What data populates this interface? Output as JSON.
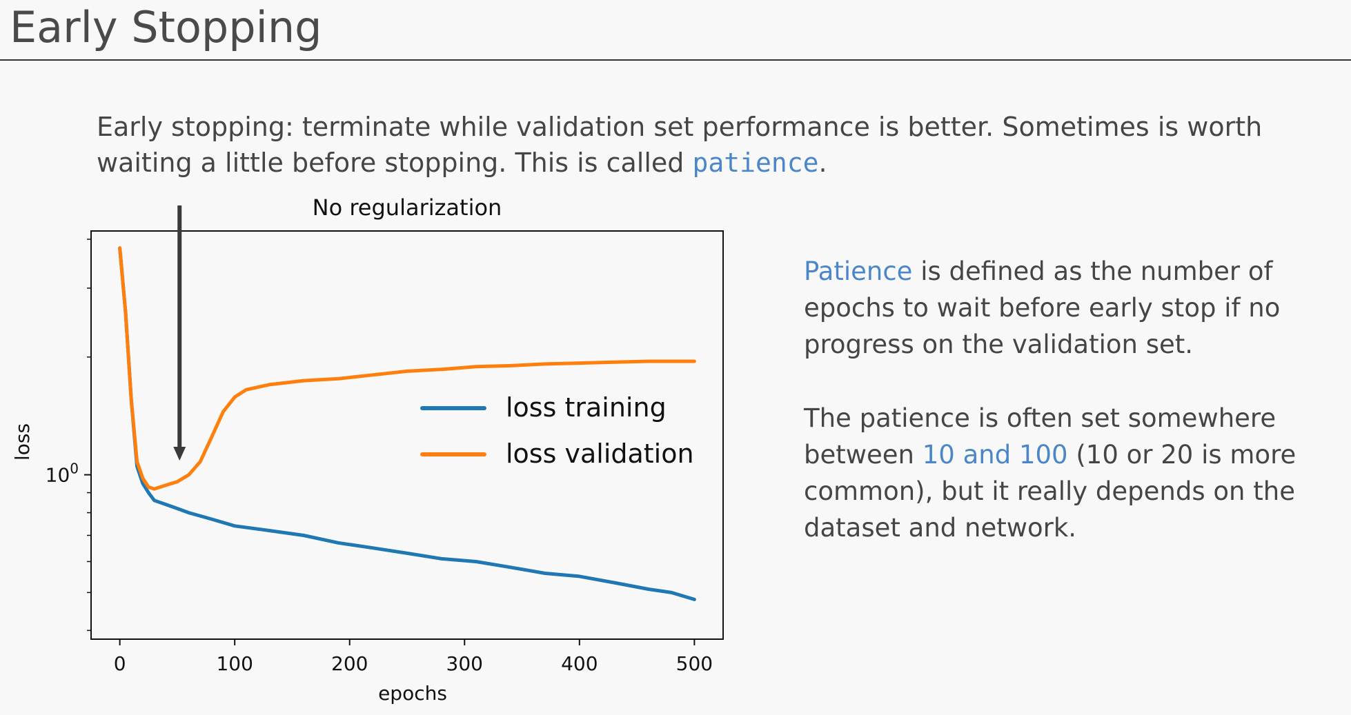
{
  "slide": {
    "title": "Early Stopping"
  },
  "intro": {
    "line1": "Early stopping: terminate while validation set performance is better. Sometimes is worth",
    "line2_prefix": "waiting a little before stopping. This is called ",
    "line2_code": "patience",
    "line2_suffix": "."
  },
  "side": {
    "p1_highlight": "Patience",
    "p1_line1_rest": " is defined as the number of",
    "p1_line2": "epochs to wait before early stop if no",
    "p1_line3": "progress on the validation set.",
    "p2_line1": "The patience is often set somewhere",
    "p2_line2_prefix": "between ",
    "p2_line2_highlight": "10 and 100",
    "p2_line2_suffix": " (10 or 20 is more",
    "p2_line3": "common), but it really depends on the",
    "p2_line4": "dataset and network."
  },
  "colors": {
    "accent": "#4a86c8",
    "training": "#1f77b4",
    "validation": "#ff7f0e",
    "arrow": "#3a3a3a"
  },
  "chart_data": {
    "type": "line",
    "title": "No regularization",
    "xlabel": "epochs",
    "ylabel": "loss",
    "xlim": [
      -25,
      525
    ],
    "ylim": [
      0.38,
      4.2
    ],
    "yscale": "log",
    "xticks": [
      0,
      100,
      200,
      300,
      400,
      500
    ],
    "xtick_labels": [
      "0",
      "100",
      "200",
      "300",
      "400",
      "500"
    ],
    "yticks": [
      1.0
    ],
    "ytick_label_base": "10",
    "ytick_label_exp": "0",
    "grid": false,
    "legend_position": "center-right",
    "annotation": "arrow pointing down at epoch 52",
    "arrow_epoch": 52,
    "series": [
      {
        "name": "loss training",
        "color": "#1f77b4",
        "x": [
          0,
          5,
          10,
          15,
          20,
          25,
          30,
          40,
          50,
          60,
          80,
          100,
          130,
          160,
          190,
          220,
          250,
          280,
          310,
          340,
          370,
          400,
          430,
          460,
          480,
          500
        ],
        "y": [
          3.8,
          2.6,
          1.55,
          1.05,
          0.95,
          0.9,
          0.86,
          0.84,
          0.82,
          0.8,
          0.77,
          0.74,
          0.72,
          0.7,
          0.67,
          0.65,
          0.63,
          0.61,
          0.6,
          0.58,
          0.56,
          0.55,
          0.53,
          0.51,
          0.5,
          0.48
        ]
      },
      {
        "name": "loss validation",
        "color": "#ff7f0e",
        "x": [
          0,
          5,
          10,
          15,
          20,
          25,
          30,
          40,
          50,
          60,
          70,
          80,
          90,
          100,
          110,
          130,
          160,
          190,
          220,
          250,
          280,
          310,
          340,
          370,
          400,
          430,
          460,
          480,
          500
        ],
        "y": [
          3.8,
          2.6,
          1.55,
          1.08,
          0.98,
          0.93,
          0.92,
          0.94,
          0.96,
          1.0,
          1.08,
          1.25,
          1.45,
          1.58,
          1.65,
          1.7,
          1.74,
          1.76,
          1.8,
          1.84,
          1.86,
          1.89,
          1.9,
          1.92,
          1.93,
          1.94,
          1.95,
          1.95,
          1.95
        ]
      }
    ]
  }
}
